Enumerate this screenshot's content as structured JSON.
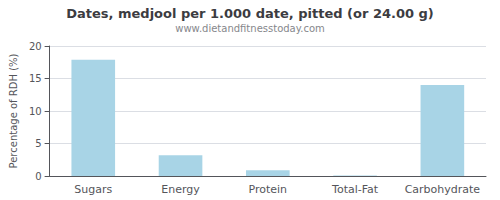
{
  "chart_data": {
    "type": "bar",
    "title": "Dates, medjool per 1.000 date, pitted (or 24.00 g)",
    "subtitle": "www.dietandfitnesstoday.com",
    "categories": [
      "Sugars",
      "Energy",
      "Protein",
      "Total-Fat",
      "Carbohydrate"
    ],
    "values": [
      17.9,
      3.2,
      0.9,
      0.07,
      14.0
    ],
    "color": "#a8d4e6",
    "ylabel": "Percentage of RDH (%)",
    "ylim": [
      0,
      20
    ],
    "yticks": [
      0,
      5,
      10,
      15,
      20
    ],
    "grid": true
  }
}
